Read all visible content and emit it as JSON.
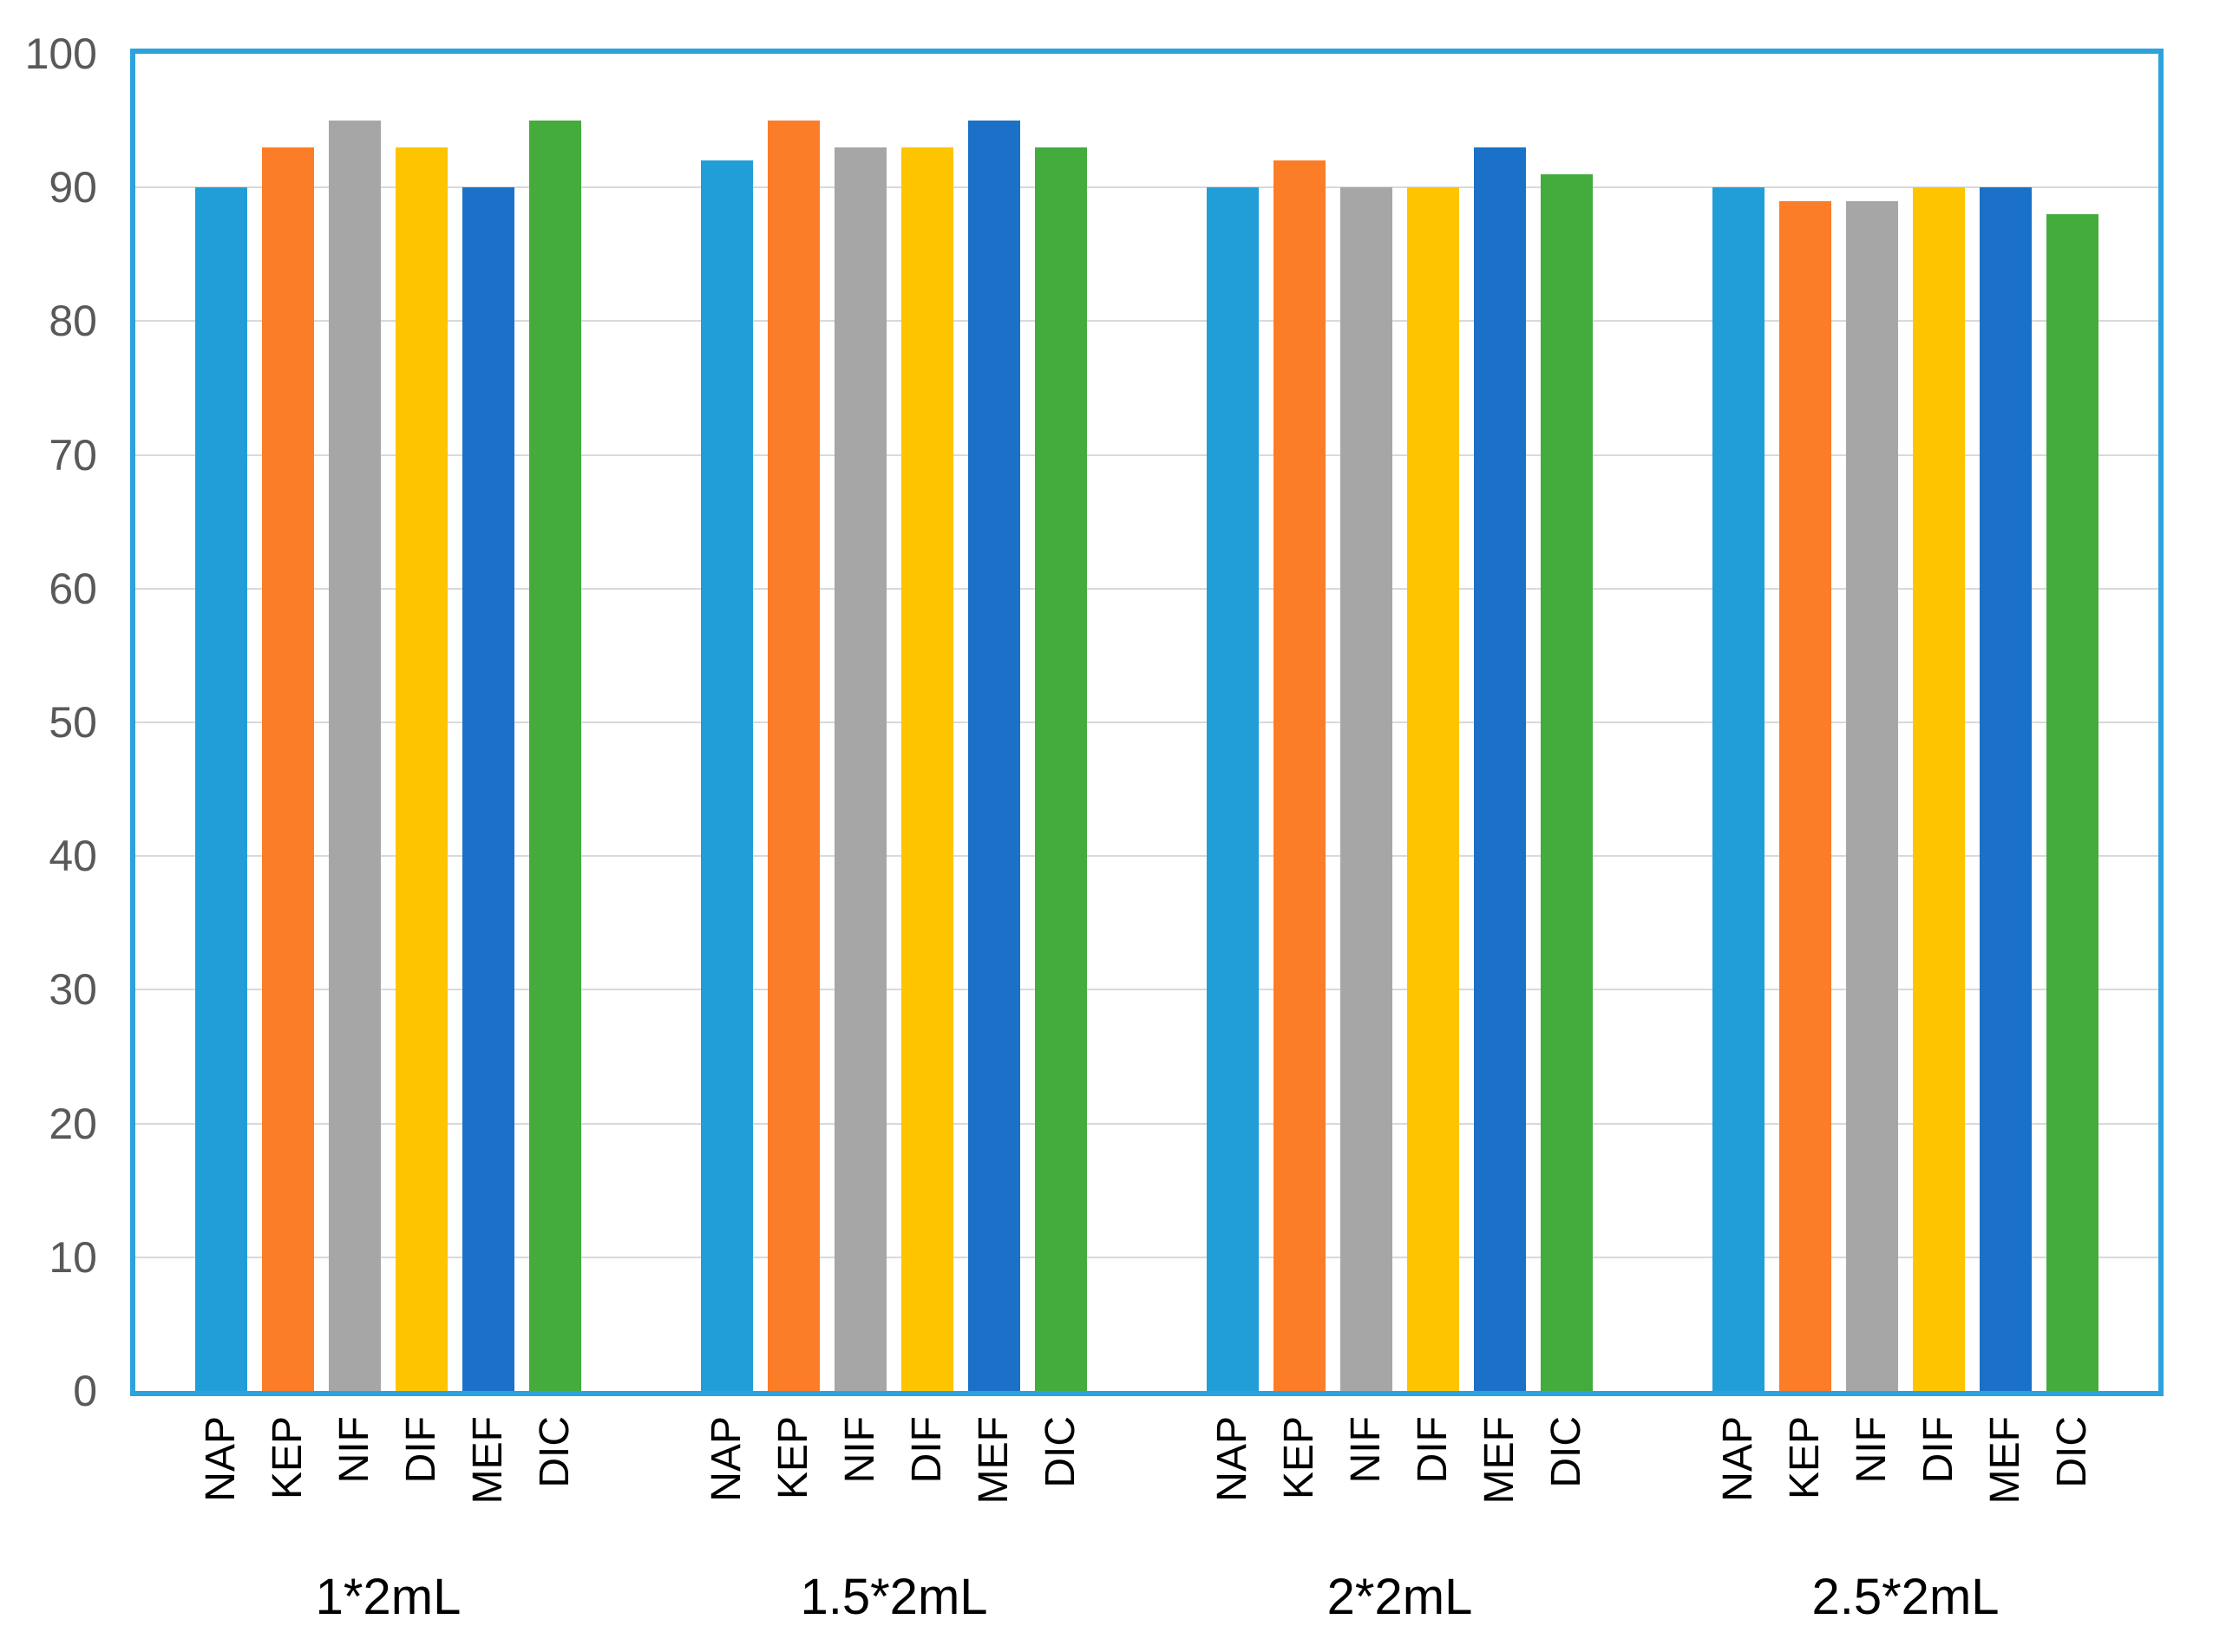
{
  "chart_data": {
    "type": "bar",
    "title": "",
    "xlabel": "",
    "ylabel": "",
    "categories": [
      "1*2mL",
      "1.5*2mL",
      "2*2mL",
      "2.5*2mL"
    ],
    "series": [
      {
        "name": "NAP",
        "color": "#219ED8",
        "values": [
          90,
          92,
          90,
          90
        ]
      },
      {
        "name": "KEP",
        "color": "#FB7D27",
        "values": [
          93,
          95,
          92,
          89
        ]
      },
      {
        "name": "NIF",
        "color": "#A6A6A6",
        "values": [
          95,
          93,
          90,
          89
        ]
      },
      {
        "name": "DIF",
        "color": "#FEC400",
        "values": [
          93,
          93,
          90,
          90
        ]
      },
      {
        "name": "MEF",
        "color": "#1B71C7",
        "values": [
          90,
          95,
          93,
          90
        ]
      },
      {
        "name": "DIC",
        "color": "#43AC3C",
        "values": [
          95,
          93,
          91,
          88
        ]
      }
    ],
    "ylim": [
      0,
      100
    ],
    "ytick_step": 10,
    "ytick_labels": [
      "0",
      "10",
      "20",
      "30",
      "40",
      "50",
      "60",
      "70",
      "80",
      "90",
      "100"
    ],
    "grid": true,
    "legend_position": "none",
    "plot_border_color": "#2EA2DB",
    "gridline_color": "#D9D9D9",
    "tick_label_color": "#595959",
    "category_label_color": "#000000"
  }
}
